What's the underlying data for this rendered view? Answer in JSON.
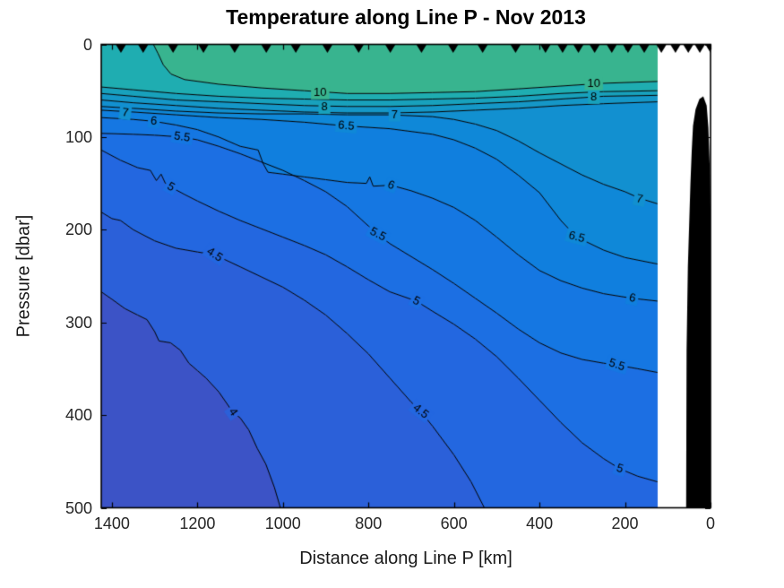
{
  "figure": {
    "title": "Temperature along Line P - Nov 2013"
  },
  "axes": {
    "xlabel": "Distance along Line P [km]",
    "ylabel": "Pressure [dbar]",
    "x_tick_labels": [
      "1400",
      "1200",
      "1000",
      "800",
      "600",
      "400",
      "200",
      "0"
    ],
    "y_tick_labels": [
      "0",
      "100",
      "200",
      "300",
      "400",
      "500"
    ]
  },
  "chart_data": {
    "type": "filled_contour_section",
    "title": "Temperature along Line P - Nov 2013",
    "xlabel": "Distance along Line P [km]",
    "ylabel": "Pressure [dbar]",
    "units": {
      "x": "km",
      "y": "dbar",
      "z": "degC"
    },
    "xlim": [
      0,
      1425
    ],
    "x_axis_reversed": true,
    "ylim": [
      0,
      500
    ],
    "y_axis_reversed": true,
    "x_ticks": [
      1400,
      1200,
      1000,
      800,
      600,
      400,
      200,
      0
    ],
    "y_ticks": [
      0,
      100,
      200,
      300,
      400,
      500
    ],
    "grid": false,
    "background": "#ffffff",
    "line_color": "#000000",
    "marker_color": "#000000",
    "data_extent_km": [
      124,
      1425
    ],
    "contour_levels_degC": [
      10,
      9,
      8,
      7.5,
      7,
      6.5,
      6,
      5.5,
      5,
      4.5,
      4
    ],
    "band_colors": [
      "#38B48F",
      "#1FADB1",
      "#18A1BC",
      "#1597C7",
      "#1290D0",
      "#0F88D8",
      "#107FDE",
      "#1577E2",
      "#1C6FE3",
      "#2367E0",
      "#2B60D9",
      "#3C53C6"
    ],
    "band_ranges": [
      ">10",
      "9-10",
      "8-9",
      "7.5-8",
      "7-7.5",
      "6.5-7",
      "6-6.5",
      "5.5-6",
      "5-5.5",
      "4.5-5",
      "4-4.5",
      "<4"
    ],
    "isotherms": [
      {
        "level": 10,
        "depth_profile_km_dbar": [
          [
            1303,
            0
          ],
          [
            1292,
            10
          ],
          [
            1280,
            22
          ],
          [
            1262,
            32
          ],
          [
            1230,
            38
          ],
          [
            1150,
            43
          ],
          [
            1050,
            47
          ],
          [
            950,
            50
          ],
          [
            850,
            53
          ],
          [
            750,
            53
          ],
          [
            650,
            52
          ],
          [
            550,
            51
          ],
          [
            450,
            48
          ],
          [
            350,
            45
          ],
          [
            250,
            42
          ],
          [
            124,
            40
          ]
        ]
      },
      {
        "level": 9,
        "depth_profile_km_dbar": [
          [
            1425,
            46
          ],
          [
            1350,
            49
          ],
          [
            1250,
            53
          ],
          [
            1150,
            56
          ],
          [
            1050,
            58
          ],
          [
            950,
            59
          ],
          [
            850,
            60
          ],
          [
            750,
            60
          ],
          [
            650,
            59
          ],
          [
            550,
            58
          ],
          [
            450,
            56
          ],
          [
            350,
            53
          ],
          [
            250,
            51
          ],
          [
            124,
            50
          ]
        ]
      },
      {
        "level": 8,
        "depth_profile_km_dbar": [
          [
            1425,
            53
          ],
          [
            1350,
            56
          ],
          [
            1250,
            60
          ],
          [
            1150,
            62
          ],
          [
            1050,
            64
          ],
          [
            950,
            66
          ],
          [
            850,
            67
          ],
          [
            750,
            67
          ],
          [
            650,
            66
          ],
          [
            550,
            64
          ],
          [
            450,
            62
          ],
          [
            350,
            59
          ],
          [
            250,
            56
          ],
          [
            124,
            55
          ]
        ]
      },
      {
        "level": 7.5,
        "depth_profile_km_dbar": [
          [
            1425,
            60
          ],
          [
            1350,
            63
          ],
          [
            1250,
            66
          ],
          [
            1150,
            69
          ],
          [
            1050,
            71
          ],
          [
            950,
            73
          ],
          [
            850,
            74
          ],
          [
            750,
            74
          ],
          [
            650,
            73
          ],
          [
            550,
            71
          ],
          [
            450,
            69
          ],
          [
            350,
            66
          ],
          [
            250,
            64
          ],
          [
            124,
            62
          ]
        ]
      },
      {
        "level": 7,
        "depth_profile_km_dbar": [
          [
            1425,
            67
          ],
          [
            1350,
            69
          ],
          [
            1250,
            72
          ],
          [
            1150,
            74
          ],
          [
            1050,
            75
          ],
          [
            950,
            75
          ],
          [
            850,
            76
          ],
          [
            750,
            76
          ],
          [
            650,
            78
          ],
          [
            600,
            81
          ],
          [
            550,
            86
          ],
          [
            500,
            93
          ],
          [
            450,
            104
          ],
          [
            400,
            117
          ],
          [
            350,
            129
          ],
          [
            300,
            141
          ],
          [
            250,
            151
          ],
          [
            200,
            159
          ],
          [
            166,
            166
          ],
          [
            124,
            172
          ]
        ]
      },
      {
        "level": 6.5,
        "depth_profile_km_dbar": [
          [
            1425,
            71
          ],
          [
            1350,
            73
          ],
          [
            1250,
            76
          ],
          [
            1150,
            79
          ],
          [
            1050,
            81
          ],
          [
            950,
            84
          ],
          [
            852,
            88
          ],
          [
            750,
            91
          ],
          [
            650,
            97
          ],
          [
            600,
            103
          ],
          [
            550,
            112
          ],
          [
            500,
            124
          ],
          [
            450,
            141
          ],
          [
            400,
            160
          ],
          [
            350,
            190
          ],
          [
            313,
            208
          ],
          [
            250,
            222
          ],
          [
            200,
            230
          ],
          [
            124,
            237
          ]
        ]
      },
      {
        "level": 6,
        "depth_profile_km_dbar": [
          [
            1425,
            79
          ],
          [
            1350,
            81
          ],
          [
            1302,
            83
          ],
          [
            1250,
            87
          ],
          [
            1200,
            92
          ],
          [
            1150,
            100
          ],
          [
            1100,
            110
          ],
          [
            1058,
            114
          ],
          [
            1047,
            128
          ],
          [
            1035,
            138
          ],
          [
            1000,
            140
          ],
          [
            950,
            143
          ],
          [
            900,
            146
          ],
          [
            850,
            149
          ],
          [
            805,
            150
          ],
          [
            797,
            143
          ],
          [
            789,
            153
          ],
          [
            747,
            152
          ],
          [
            700,
            158
          ],
          [
            650,
            166
          ],
          [
            600,
            176
          ],
          [
            550,
            190
          ],
          [
            500,
            208
          ],
          [
            450,
            227
          ],
          [
            400,
            244
          ],
          [
            350,
            255
          ],
          [
            300,
            263
          ],
          [
            250,
            269
          ],
          [
            183,
            274
          ],
          [
            124,
            277
          ]
        ]
      },
      {
        "level": 5.5,
        "depth_profile_km_dbar": [
          [
            1425,
            96
          ],
          [
            1350,
            97
          ],
          [
            1300,
            98
          ],
          [
            1236,
            100
          ],
          [
            1200,
            103
          ],
          [
            1150,
            110
          ],
          [
            1100,
            118
          ],
          [
            1050,
            127
          ],
          [
            1000,
            136
          ],
          [
            950,
            147
          ],
          [
            900,
            159
          ],
          [
            850,
            175
          ],
          [
            800,
            196
          ],
          [
            778,
            205
          ],
          [
            750,
            215
          ],
          [
            700,
            229
          ],
          [
            650,
            243
          ],
          [
            600,
            258
          ],
          [
            550,
            274
          ],
          [
            500,
            290
          ],
          [
            450,
            307
          ],
          [
            400,
            322
          ],
          [
            350,
            333
          ],
          [
            300,
            340
          ],
          [
            250,
            344
          ],
          [
            219,
            346
          ],
          [
            170,
            350
          ],
          [
            124,
            354
          ]
        ]
      },
      {
        "level": 5,
        "depth_profile_km_dbar": [
          [
            1425,
            114
          ],
          [
            1380,
            125
          ],
          [
            1340,
            133
          ],
          [
            1310,
            136
          ],
          [
            1296,
            147
          ],
          [
            1285,
            140
          ],
          [
            1275,
            150
          ],
          [
            1262,
            154
          ],
          [
            1230,
            162
          ],
          [
            1200,
            169
          ],
          [
            1150,
            180
          ],
          [
            1100,
            190
          ],
          [
            1050,
            199
          ],
          [
            1000,
            208
          ],
          [
            950,
            217
          ],
          [
            900,
            227
          ],
          [
            850,
            240
          ],
          [
            800,
            254
          ],
          [
            750,
            267
          ],
          [
            688,
            277
          ],
          [
            650,
            288
          ],
          [
            600,
            302
          ],
          [
            550,
            318
          ],
          [
            500,
            337
          ],
          [
            450,
            360
          ],
          [
            400,
            384
          ],
          [
            350,
            408
          ],
          [
            300,
            430
          ],
          [
            250,
            447
          ],
          [
            212,
            458
          ],
          [
            170,
            466
          ],
          [
            124,
            472
          ]
        ]
      },
      {
        "level": 4.5,
        "depth_profile_km_dbar": [
          [
            1425,
            181
          ],
          [
            1400,
            188
          ],
          [
            1380,
            190
          ],
          [
            1350,
            200
          ],
          [
            1300,
            212
          ],
          [
            1250,
            220
          ],
          [
            1200,
            224
          ],
          [
            1160,
            227
          ],
          [
            1100,
            240
          ],
          [
            1050,
            251
          ],
          [
            1000,
            262
          ],
          [
            950,
            276
          ],
          [
            900,
            292
          ],
          [
            850,
            312
          ],
          [
            800,
            334
          ],
          [
            750,
            360
          ],
          [
            700,
            386
          ],
          [
            678,
            396
          ],
          [
            650,
            412
          ],
          [
            600,
            443
          ],
          [
            560,
            472
          ],
          [
            529,
            500
          ]
        ]
      },
      {
        "level": 4,
        "depth_profile_km_dbar": [
          [
            1425,
            267
          ],
          [
            1400,
            275
          ],
          [
            1370,
            285
          ],
          [
            1340,
            292
          ],
          [
            1318,
            297
          ],
          [
            1300,
            310
          ],
          [
            1290,
            320
          ],
          [
            1263,
            322
          ],
          [
            1240,
            330
          ],
          [
            1220,
            344
          ],
          [
            1200,
            352
          ],
          [
            1180,
            360
          ],
          [
            1150,
            375
          ],
          [
            1117,
            397
          ],
          [
            1100,
            403
          ],
          [
            1080,
            416
          ],
          [
            1060,
            436
          ],
          [
            1040,
            453
          ],
          [
            1020,
            478
          ],
          [
            1006,
            500
          ]
        ]
      }
    ],
    "contour_labels": [
      {
        "text": "10",
        "km": 913,
        "dbar": 52,
        "rotation_deg": 0
      },
      {
        "text": "8",
        "km": 903,
        "dbar": 68,
        "rotation_deg": 0
      },
      {
        "text": "7",
        "km": 1369,
        "dbar": 74,
        "rotation_deg": 8
      },
      {
        "text": "6",
        "km": 1302,
        "dbar": 83,
        "rotation_deg": 5
      },
      {
        "text": "5.5",
        "km": 1236,
        "dbar": 100,
        "rotation_deg": 8
      },
      {
        "text": "6.5",
        "km": 852,
        "dbar": 88,
        "rotation_deg": 5
      },
      {
        "text": "7",
        "km": 739,
        "dbar": 76,
        "rotation_deg": 0
      },
      {
        "text": "10",
        "km": 273,
        "dbar": 42,
        "rotation_deg": 0
      },
      {
        "text": "8",
        "km": 273,
        "dbar": 57,
        "rotation_deg": 0
      },
      {
        "text": "5",
        "km": 1262,
        "dbar": 154,
        "rotation_deg": 30
      },
      {
        "text": "6",
        "km": 747,
        "dbar": 152,
        "rotation_deg": 22
      },
      {
        "text": "5.5",
        "km": 778,
        "dbar": 205,
        "rotation_deg": 28
      },
      {
        "text": "4.5",
        "km": 1160,
        "dbar": 227,
        "rotation_deg": 33
      },
      {
        "text": "5",
        "km": 688,
        "dbar": 277,
        "rotation_deg": 28
      },
      {
        "text": "7",
        "km": 166,
        "dbar": 167,
        "rotation_deg": 12
      },
      {
        "text": "6.5",
        "km": 313,
        "dbar": 208,
        "rotation_deg": 15
      },
      {
        "text": "6",
        "km": 183,
        "dbar": 274,
        "rotation_deg": 12
      },
      {
        "text": "5.5",
        "km": 219,
        "dbar": 346,
        "rotation_deg": 18
      },
      {
        "text": "4",
        "km": 1117,
        "dbar": 397,
        "rotation_deg": 55
      },
      {
        "text": "4.5",
        "km": 678,
        "dbar": 396,
        "rotation_deg": 38
      },
      {
        "text": "5",
        "km": 212,
        "dbar": 458,
        "rotation_deg": 18
      }
    ],
    "station_marker_km": [
      1379,
      1327,
      1257,
      1186,
      1113,
      1039,
      970,
      896,
      823,
      749,
      676,
      602,
      533,
      456,
      386,
      346,
      309,
      271,
      231,
      193,
      155,
      115,
      82,
      52,
      25,
      0
    ],
    "bathymetry_outline_km_dbar": [
      [
        17,
        56
      ],
      [
        9,
        66
      ],
      [
        5,
        90
      ],
      [
        2,
        130
      ],
      [
        0,
        180
      ],
      [
        0,
        500
      ],
      [
        57,
        500
      ],
      [
        56,
        330
      ],
      [
        53,
        240
      ],
      [
        50,
        195
      ],
      [
        47,
        150
      ],
      [
        44,
        115
      ],
      [
        41,
        88
      ],
      [
        35,
        70
      ],
      [
        26,
        59
      ]
    ]
  }
}
